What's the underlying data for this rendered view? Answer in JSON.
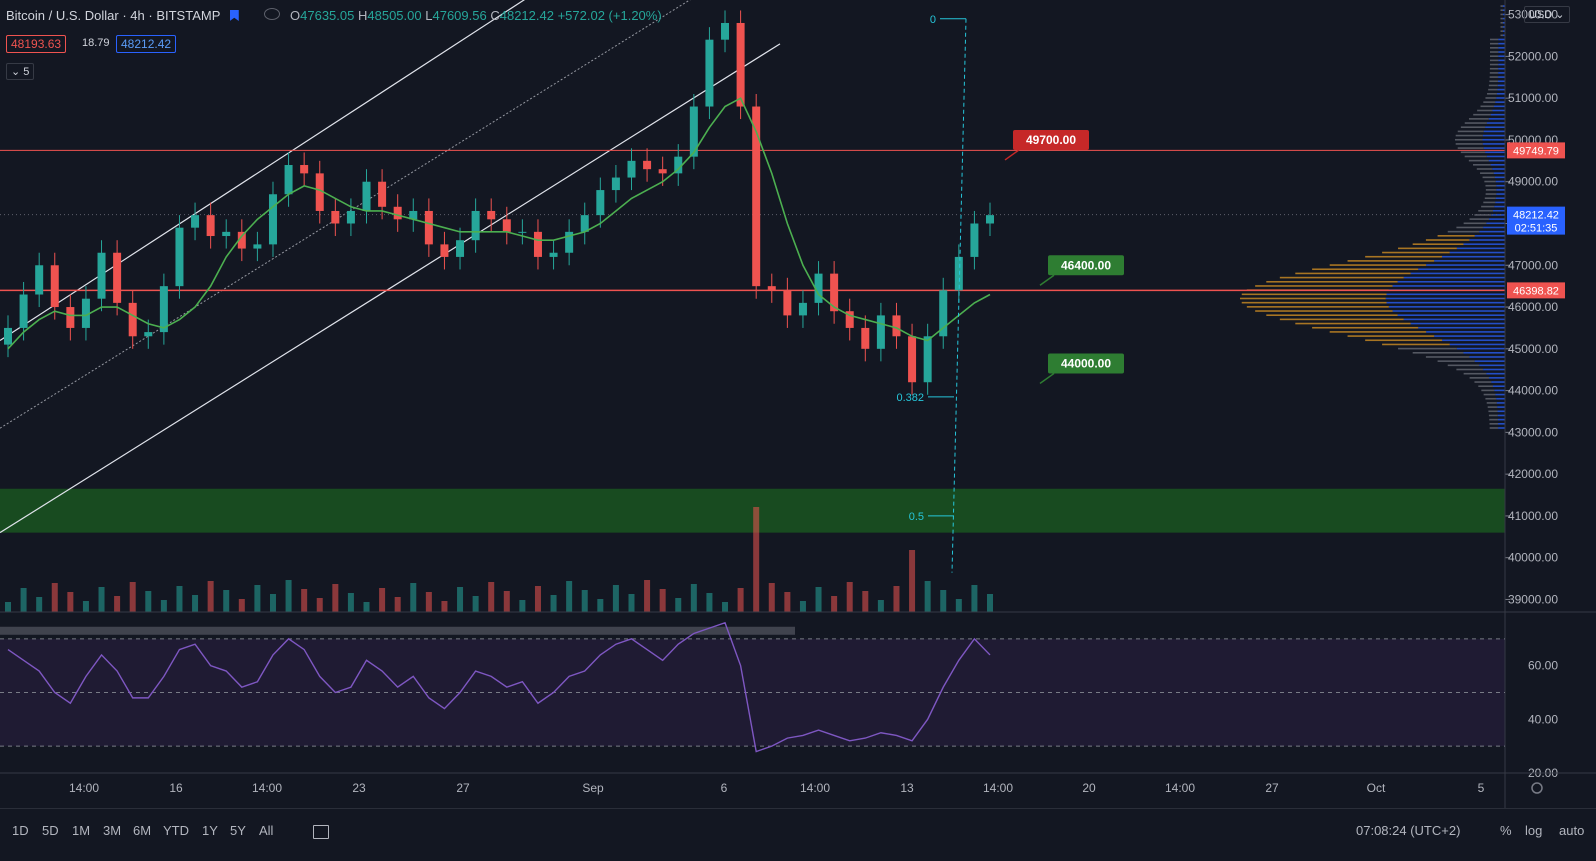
{
  "header": {
    "title": "Bitcoin / U.S. Dollar",
    "interval": "4h",
    "exchange": "BITSTAMP",
    "ohlc": {
      "open_label": "O",
      "open": "47635.05",
      "high_label": "H",
      "high": "48505.00",
      "low_label": "L",
      "low": "47609.56",
      "close_label": "C",
      "close": "48212.42",
      "change": "+572.02 (+1.20%)"
    },
    "bid": "48193.63",
    "spread": "18.79",
    "ask": "48212.42",
    "indicators_count": "5"
  },
  "currency_selector": "USD",
  "timeframes": [
    "1D",
    "5D",
    "1M",
    "3M",
    "6M",
    "YTD",
    "1Y",
    "5Y",
    "All"
  ],
  "clock": "07:08:24 (UTC+2)",
  "scale_options": [
    "%",
    "log",
    "auto"
  ],
  "colors": {
    "background": "#131722",
    "up": "#26a69a",
    "down": "#ef5350",
    "ma": "#4caf50",
    "rsi": "#7e57c2",
    "fib": "#26c6da",
    "support_zone": "#1b5e20"
  },
  "chart_data": [
    {
      "type": "candlestick",
      "x_ticks": [
        "14:00",
        "16",
        "14:00",
        "23",
        "27",
        "Sep",
        "6",
        "14:00",
        "13",
        "14:00",
        "20",
        "14:00",
        "27",
        "Oct",
        "5"
      ],
      "y_ticks": [
        "53000.00",
        "52000.00",
        "51000.00",
        "50000.00",
        "49000.00",
        "48000.00",
        "47000.00",
        "46000.00",
        "45000.00",
        "44000.00",
        "43000.00",
        "42000.00",
        "41000.00",
        "40000.00",
        "39000.00"
      ],
      "ylim": [
        38700,
        53350
      ],
      "price_series": [
        45500,
        46300,
        47000,
        46000,
        45500,
        46200,
        47300,
        46100,
        45300,
        45400,
        46500,
        47900,
        48200,
        47700,
        47800,
        47400,
        47500,
        48700,
        49400,
        49200,
        48300,
        48000,
        48300,
        49000,
        48400,
        48100,
        48300,
        47500,
        47200,
        47600,
        48300,
        48100,
        47800,
        47800,
        47200,
        47300,
        47800,
        48200,
        48800,
        49100,
        49500,
        49300,
        49200,
        49600,
        50800,
        52400,
        52800,
        50800,
        46500,
        46400,
        45800,
        46100,
        46800,
        45900,
        45500,
        45000,
        45800,
        45300,
        44200,
        45300,
        46400,
        47200,
        48000,
        48200
      ],
      "ma_series": [
        45000,
        45400,
        45700,
        45900,
        45800,
        45800,
        46000,
        46000,
        45800,
        45600,
        45500,
        45700,
        46000,
        46500,
        47200,
        47700,
        48100,
        48400,
        48700,
        48900,
        48800,
        48600,
        48400,
        48300,
        48300,
        48200,
        48100,
        48000,
        47900,
        47800,
        47800,
        47800,
        47800,
        47700,
        47600,
        47600,
        47700,
        47800,
        48000,
        48300,
        48600,
        48800,
        49000,
        49300,
        49700,
        50300,
        50800,
        51000,
        50200,
        49200,
        48000,
        47000,
        46300,
        46000,
        45800,
        45700,
        45600,
        45500,
        45300,
        45200,
        45500,
        45800,
        46100,
        46300
      ],
      "rsi_series": [
        66,
        62,
        58,
        50,
        46,
        56,
        64,
        58,
        48,
        48,
        56,
        66,
        68,
        60,
        58,
        52,
        54,
        64,
        70,
        66,
        56,
        50,
        52,
        62,
        58,
        52,
        56,
        48,
        44,
        50,
        58,
        56,
        52,
        54,
        46,
        50,
        56,
        58,
        64,
        68,
        70,
        66,
        62,
        68,
        72,
        74,
        76,
        60,
        28,
        30,
        33,
        34,
        36,
        34,
        32,
        33,
        35,
        34,
        32,
        40,
        52,
        62,
        70,
        64
      ],
      "horizontal_levels": [
        {
          "price": 49749.79,
          "label": "49749.79"
        },
        {
          "price": 46398.82,
          "label": "46398.82"
        }
      ],
      "annotations": [
        {
          "text": "49700.00",
          "price": 49700,
          "color": "red"
        },
        {
          "text": "46400.00",
          "price": 46400,
          "color": "green"
        },
        {
          "text": "44000.00",
          "price": 44000,
          "color": "green"
        }
      ],
      "fib_levels": [
        {
          "label": "0",
          "price": 52900
        },
        {
          "label": "0.382",
          "price": 43850
        },
        {
          "label": "0.5",
          "price": 41000
        }
      ],
      "support_zone": [
        40600,
        41650
      ],
      "current_price": {
        "value": "48212.42",
        "countdown": "02:51:35"
      },
      "rsi_ticks": [
        "60.00",
        "40.00",
        "20.00"
      ],
      "rsi_ylim": [
        20,
        80
      ]
    }
  ]
}
